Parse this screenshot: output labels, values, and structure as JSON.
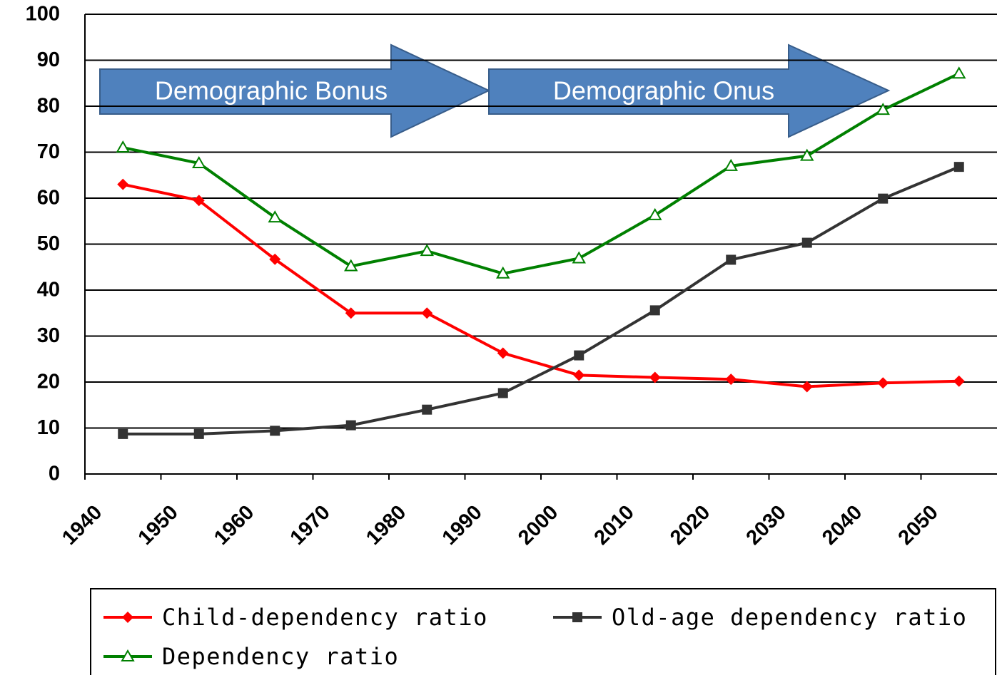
{
  "chart_data": {
    "type": "line",
    "annotations": [
      "Demographic Bonus",
      "Demographic Onus"
    ],
    "x": [
      1945,
      1955,
      1965,
      1975,
      1985,
      1995,
      2005,
      2015,
      2025,
      2035,
      2045,
      2055
    ],
    "series": [
      {
        "name": "Child-dependency ratio",
        "color": "#ff0000",
        "marker": "diamond",
        "values": [
          63,
          59.5,
          46.7,
          35,
          35,
          26.3,
          21.5,
          21,
          20.6,
          19,
          19.8,
          20.2
        ]
      },
      {
        "name": "Old-age dependency ratio",
        "color": "#333333",
        "marker": "square",
        "values": [
          8.7,
          8.7,
          9.4,
          10.6,
          14,
          17.6,
          25.8,
          35.6,
          46.6,
          50.3,
          59.9,
          66.8
        ]
      },
      {
        "name": "Dependency ratio",
        "color": "#008000",
        "marker": "triangle",
        "values": [
          71,
          67.6,
          55.8,
          45.2,
          48.5,
          43.6,
          46.9,
          56.3,
          67,
          69.2,
          79.2,
          87.1
        ]
      }
    ],
    "xlim": [
      1940,
      2060
    ],
    "xticks": [
      1940,
      1950,
      1960,
      1970,
      1980,
      1990,
      2000,
      2010,
      2020,
      2030,
      2040,
      2050
    ],
    "ylim": [
      0,
      100
    ],
    "yticks": [
      0,
      10,
      20,
      30,
      40,
      50,
      60,
      70,
      80,
      90,
      100
    ],
    "grid": true
  }
}
